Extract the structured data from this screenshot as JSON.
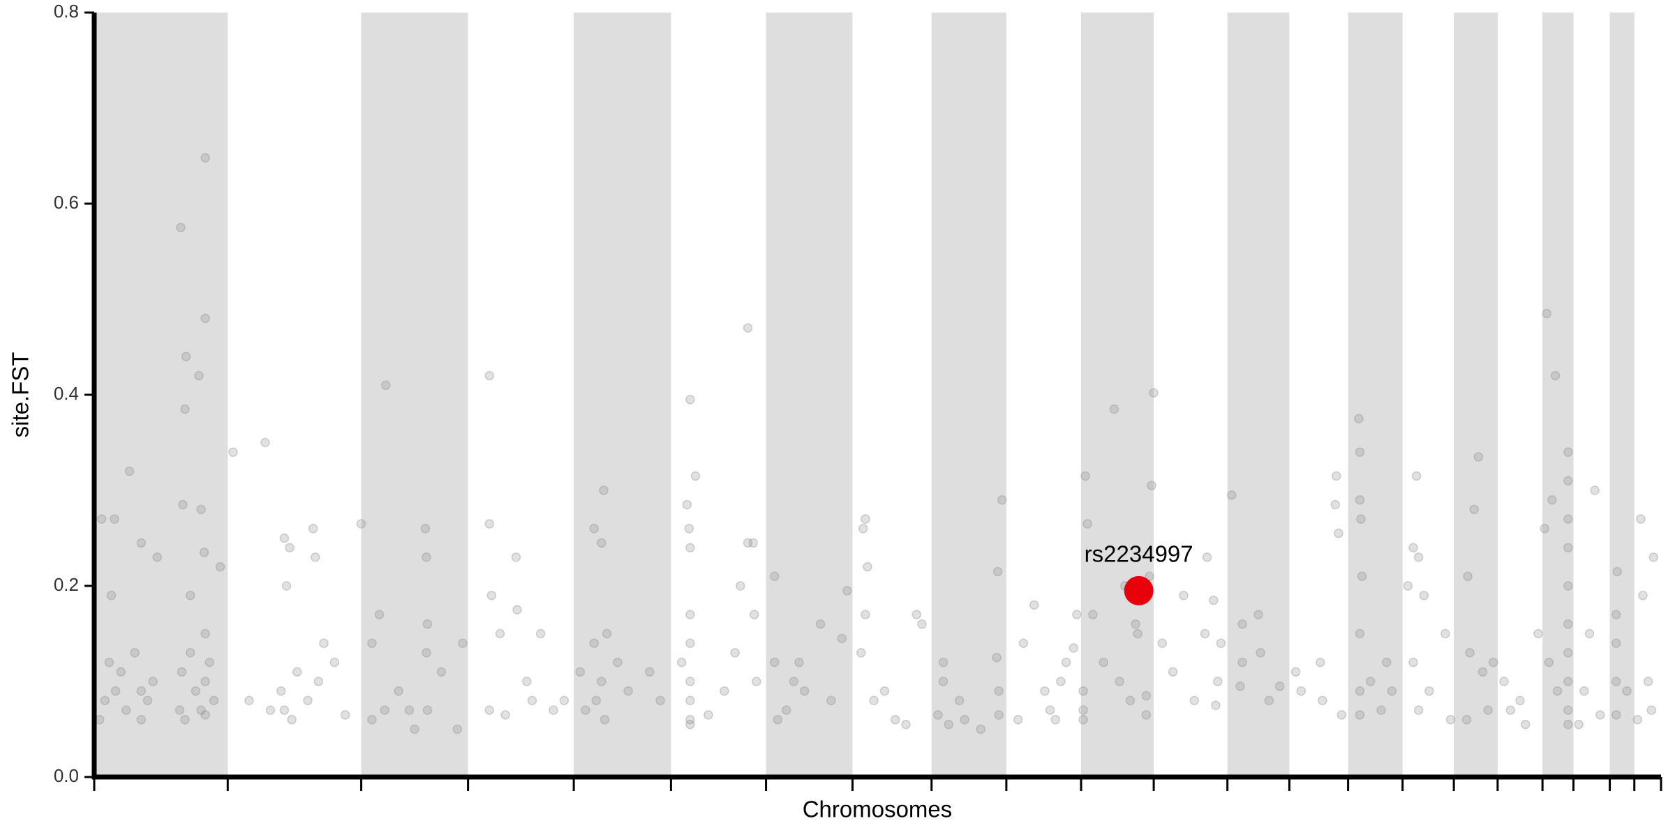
{
  "chart_data": {
    "type": "scatter",
    "xlabel": "Chromosomes",
    "ylabel": "site.FST",
    "xlim": [
      0,
      1467
    ],
    "ylim": [
      0,
      0.8
    ],
    "yticks": [
      {
        "value": 0,
        "label": "0.0"
      },
      0.2,
      0.4,
      0.6,
      0.8
    ],
    "chromosome_bounds": [
      0,
      125,
      250,
      350,
      449,
      540,
      629,
      710,
      784,
      854,
      924,
      992,
      1061,
      1119,
      1174,
      1225,
      1273,
      1314,
      1356,
      1385,
      1419,
      1442,
      1467
    ],
    "band_color": "#dedede",
    "point_color": "#888888",
    "points": [
      [
        7,
        0.27
      ],
      [
        16,
        0.19
      ],
      [
        19,
        0.27
      ],
      [
        33,
        0.32
      ],
      [
        44,
        0.245
      ],
      [
        59,
        0.23
      ],
      [
        81,
        0.575
      ],
      [
        83,
        0.285
      ],
      [
        86,
        0.44
      ],
      [
        85,
        0.385
      ],
      [
        98,
        0.42
      ],
      [
        104,
        0.648
      ],
      [
        104,
        0.48
      ],
      [
        100,
        0.28
      ],
      [
        103,
        0.235
      ],
      [
        90,
        0.19
      ],
      [
        118,
        0.22
      ],
      [
        5,
        0.06
      ],
      [
        10,
        0.08
      ],
      [
        14,
        0.12
      ],
      [
        20,
        0.09
      ],
      [
        25,
        0.11
      ],
      [
        30,
        0.07
      ],
      [
        38,
        0.13
      ],
      [
        44,
        0.06
      ],
      [
        44,
        0.09
      ],
      [
        50,
        0.08
      ],
      [
        55,
        0.1
      ],
      [
        80,
        0.07
      ],
      [
        82,
        0.11
      ],
      [
        85,
        0.06
      ],
      [
        90,
        0.13
      ],
      [
        95,
        0.09
      ],
      [
        100,
        0.07
      ],
      [
        104,
        0.1
      ],
      [
        104,
        0.15
      ],
      [
        104,
        0.065
      ],
      [
        108,
        0.12
      ],
      [
        112,
        0.08
      ],
      [
        130,
        0.34
      ],
      [
        160,
        0.35
      ],
      [
        178,
        0.25
      ],
      [
        180,
        0.2
      ],
      [
        183,
        0.24
      ],
      [
        205,
        0.26
      ],
      [
        207,
        0.23
      ],
      [
        215,
        0.14
      ],
      [
        178,
        0.07
      ],
      [
        175,
        0.09
      ],
      [
        185,
        0.06
      ],
      [
        200,
        0.08
      ],
      [
        210,
        0.1
      ],
      [
        225,
        0.12
      ],
      [
        235,
        0.065
      ],
      [
        190,
        0.11
      ],
      [
        145,
        0.08
      ],
      [
        165,
        0.07
      ],
      [
        250,
        0.265
      ],
      [
        273,
        0.41
      ],
      [
        260,
        0.14
      ],
      [
        267,
        0.17
      ],
      [
        272,
        0.07
      ],
      [
        260,
        0.06
      ],
      [
        285,
        0.09
      ],
      [
        300,
        0.05
      ],
      [
        310,
        0.26
      ],
      [
        311,
        0.23
      ],
      [
        312,
        0.16
      ],
      [
        311,
        0.13
      ],
      [
        312,
        0.07
      ],
      [
        325,
        0.11
      ],
      [
        345,
        0.14
      ],
      [
        340,
        0.05
      ],
      [
        295,
        0.07
      ],
      [
        370,
        0.42
      ],
      [
        370,
        0.265
      ],
      [
        372,
        0.19
      ],
      [
        380,
        0.15
      ],
      [
        395,
        0.23
      ],
      [
        396,
        0.175
      ],
      [
        405,
        0.1
      ],
      [
        370,
        0.07
      ],
      [
        385,
        0.065
      ],
      [
        410,
        0.08
      ],
      [
        430,
        0.07
      ],
      [
        418,
        0.15
      ],
      [
        440,
        0.08
      ],
      [
        468,
        0.26
      ],
      [
        477,
        0.3
      ],
      [
        468,
        0.14
      ],
      [
        475,
        0.245
      ],
      [
        480,
        0.15
      ],
      [
        455,
        0.11
      ],
      [
        460,
        0.07
      ],
      [
        470,
        0.08
      ],
      [
        475,
        0.1
      ],
      [
        478,
        0.06
      ],
      [
        490,
        0.12
      ],
      [
        500,
        0.09
      ],
      [
        520,
        0.11
      ],
      [
        530,
        0.08
      ],
      [
        555,
        0.285
      ],
      [
        558,
        0.395
      ],
      [
        563,
        0.315
      ],
      [
        557,
        0.26
      ],
      [
        558,
        0.24
      ],
      [
        558,
        0.17
      ],
      [
        558,
        0.14
      ],
      [
        558,
        0.1
      ],
      [
        558,
        0.08
      ],
      [
        558,
        0.06
      ],
      [
        558,
        0.055
      ],
      [
        550,
        0.12
      ],
      [
        575,
        0.065
      ],
      [
        590,
        0.09
      ],
      [
        600,
        0.13
      ],
      [
        612,
        0.47
      ],
      [
        612,
        0.245
      ],
      [
        617,
        0.245
      ],
      [
        618,
        0.17
      ],
      [
        605,
        0.2
      ],
      [
        620,
        0.1
      ],
      [
        637,
        0.21
      ],
      [
        637,
        0.12
      ],
      [
        648,
        0.07
      ],
      [
        660,
        0.12
      ],
      [
        665,
        0.09
      ],
      [
        680,
        0.16
      ],
      [
        690,
        0.08
      ],
      [
        700,
        0.145
      ],
      [
        705,
        0.195
      ],
      [
        640,
        0.06
      ],
      [
        655,
        0.1
      ],
      [
        720,
        0.26
      ],
      [
        722,
        0.27
      ],
      [
        724,
        0.22
      ],
      [
        722,
        0.17
      ],
      [
        718,
        0.13
      ],
      [
        740,
        0.09
      ],
      [
        750,
        0.06
      ],
      [
        770,
        0.17
      ],
      [
        775,
        0.16
      ],
      [
        760,
        0.055
      ],
      [
        730,
        0.08
      ],
      [
        795,
        0.12
      ],
      [
        795,
        0.1
      ],
      [
        790,
        0.065
      ],
      [
        800,
        0.055
      ],
      [
        810,
        0.08
      ],
      [
        815,
        0.06
      ],
      [
        845,
        0.125
      ],
      [
        847,
        0.09
      ],
      [
        847,
        0.065
      ],
      [
        850,
        0.29
      ],
      [
        846,
        0.215
      ],
      [
        830,
        0.05
      ],
      [
        870,
        0.14
      ],
      [
        880,
        0.18
      ],
      [
        890,
        0.09
      ],
      [
        895,
        0.07
      ],
      [
        905,
        0.1
      ],
      [
        910,
        0.12
      ],
      [
        917,
        0.135
      ],
      [
        920,
        0.17
      ],
      [
        865,
        0.06
      ],
      [
        900,
        0.06
      ],
      [
        928,
        0.315
      ],
      [
        930,
        0.265
      ],
      [
        935,
        0.17
      ],
      [
        926,
        0.07
      ],
      [
        926,
        0.09
      ],
      [
        926,
        0.06
      ],
      [
        945,
        0.12
      ],
      [
        955,
        0.385
      ],
      [
        960,
        0.1
      ],
      [
        965,
        0.2
      ],
      [
        970,
        0.08
      ],
      [
        975,
        0.16
      ],
      [
        977,
        0.15
      ],
      [
        985,
        0.085
      ],
      [
        985,
        0.065
      ],
      [
        988,
        0.21
      ],
      [
        990,
        0.305
      ],
      [
        992,
        0.402
      ],
      [
        1000,
        0.14
      ],
      [
        1010,
        0.11
      ],
      [
        1020,
        0.19
      ],
      [
        1042,
        0.23
      ],
      [
        1048,
        0.185
      ],
      [
        1052,
        0.1
      ],
      [
        1050,
        0.075
      ],
      [
        1040,
        0.15
      ],
      [
        1030,
        0.08
      ],
      [
        1055,
        0.14
      ],
      [
        1065,
        0.295
      ],
      [
        1075,
        0.12
      ],
      [
        1075,
        0.16
      ],
      [
        1073,
        0.095
      ],
      [
        1090,
        0.17
      ],
      [
        1092,
        0.13
      ],
      [
        1100,
        0.08
      ],
      [
        1110,
        0.095
      ],
      [
        1125,
        0.11
      ],
      [
        1130,
        0.09
      ],
      [
        1148,
        0.12
      ],
      [
        1150,
        0.08
      ],
      [
        1162,
        0.285
      ],
      [
        1163,
        0.315
      ],
      [
        1165,
        0.255
      ],
      [
        1168,
        0.065
      ],
      [
        1184,
        0.375
      ],
      [
        1185,
        0.34
      ],
      [
        1185,
        0.29
      ],
      [
        1186,
        0.27
      ],
      [
        1187,
        0.21
      ],
      [
        1185,
        0.15
      ],
      [
        1185,
        0.09
      ],
      [
        1185,
        0.065
      ],
      [
        1195,
        0.1
      ],
      [
        1205,
        0.07
      ],
      [
        1210,
        0.12
      ],
      [
        1215,
        0.09
      ],
      [
        1230,
        0.2
      ],
      [
        1235,
        0.24
      ],
      [
        1238,
        0.315
      ],
      [
        1240,
        0.23
      ],
      [
        1245,
        0.19
      ],
      [
        1235,
        0.12
      ],
      [
        1250,
        0.09
      ],
      [
        1265,
        0.15
      ],
      [
        1270,
        0.06
      ],
      [
        1240,
        0.07
      ],
      [
        1286,
        0.21
      ],
      [
        1288,
        0.13
      ],
      [
        1292,
        0.28
      ],
      [
        1296,
        0.335
      ],
      [
        1300,
        0.11
      ],
      [
        1305,
        0.07
      ],
      [
        1285,
        0.06
      ],
      [
        1310,
        0.12
      ],
      [
        1326,
        0.07
      ],
      [
        1335,
        0.08
      ],
      [
        1340,
        0.055
      ],
      [
        1352,
        0.15
      ],
      [
        1320,
        0.1
      ],
      [
        1360,
        0.485
      ],
      [
        1358,
        0.26
      ],
      [
        1365,
        0.29
      ],
      [
        1368,
        0.42
      ],
      [
        1380,
        0.34
      ],
      [
        1380,
        0.31
      ],
      [
        1380,
        0.27
      ],
      [
        1380,
        0.24
      ],
      [
        1380,
        0.2
      ],
      [
        1380,
        0.16
      ],
      [
        1380,
        0.13
      ],
      [
        1380,
        0.1
      ],
      [
        1380,
        0.07
      ],
      [
        1380,
        0.055
      ],
      [
        1370,
        0.09
      ],
      [
        1362,
        0.12
      ],
      [
        1405,
        0.3
      ],
      [
        1400,
        0.15
      ],
      [
        1395,
        0.09
      ],
      [
        1410,
        0.065
      ],
      [
        1390,
        0.055
      ],
      [
        1426,
        0.215
      ],
      [
        1425,
        0.17
      ],
      [
        1425,
        0.14
      ],
      [
        1425,
        0.1
      ],
      [
        1425,
        0.065
      ],
      [
        1435,
        0.09
      ],
      [
        1448,
        0.27
      ],
      [
        1450,
        0.19
      ],
      [
        1455,
        0.1
      ],
      [
        1458,
        0.07
      ],
      [
        1445,
        0.06
      ],
      [
        1460,
        0.23
      ]
    ],
    "highlight": {
      "label": "rs2234997",
      "x": 978,
      "value": 0.195,
      "color": "#e8000b"
    }
  }
}
